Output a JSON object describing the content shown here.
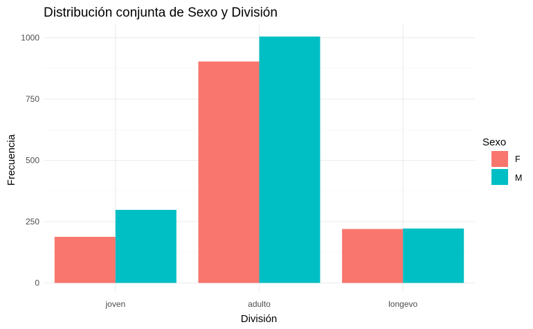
{
  "chart_data": {
    "type": "bar",
    "title": "Distribución conjunta de Sexo y División",
    "xlabel": "División",
    "ylabel": "Frecuencia",
    "categories": [
      "joven",
      "adulto",
      "longevo"
    ],
    "series": [
      {
        "name": "F",
        "color": "#F8766D",
        "values": [
          188,
          903,
          220
        ]
      },
      {
        "name": "M",
        "color": "#00BFC4",
        "values": [
          298,
          1005,
          222
        ]
      }
    ],
    "ylim": [
      0,
      1050
    ],
    "yticks": [
      0,
      250,
      500,
      750,
      1000
    ],
    "ytick_labels": [
      "0",
      "250",
      "500",
      "750",
      "1000"
    ],
    "grid": true,
    "legend": {
      "title": "Sexo",
      "position": "right"
    }
  }
}
